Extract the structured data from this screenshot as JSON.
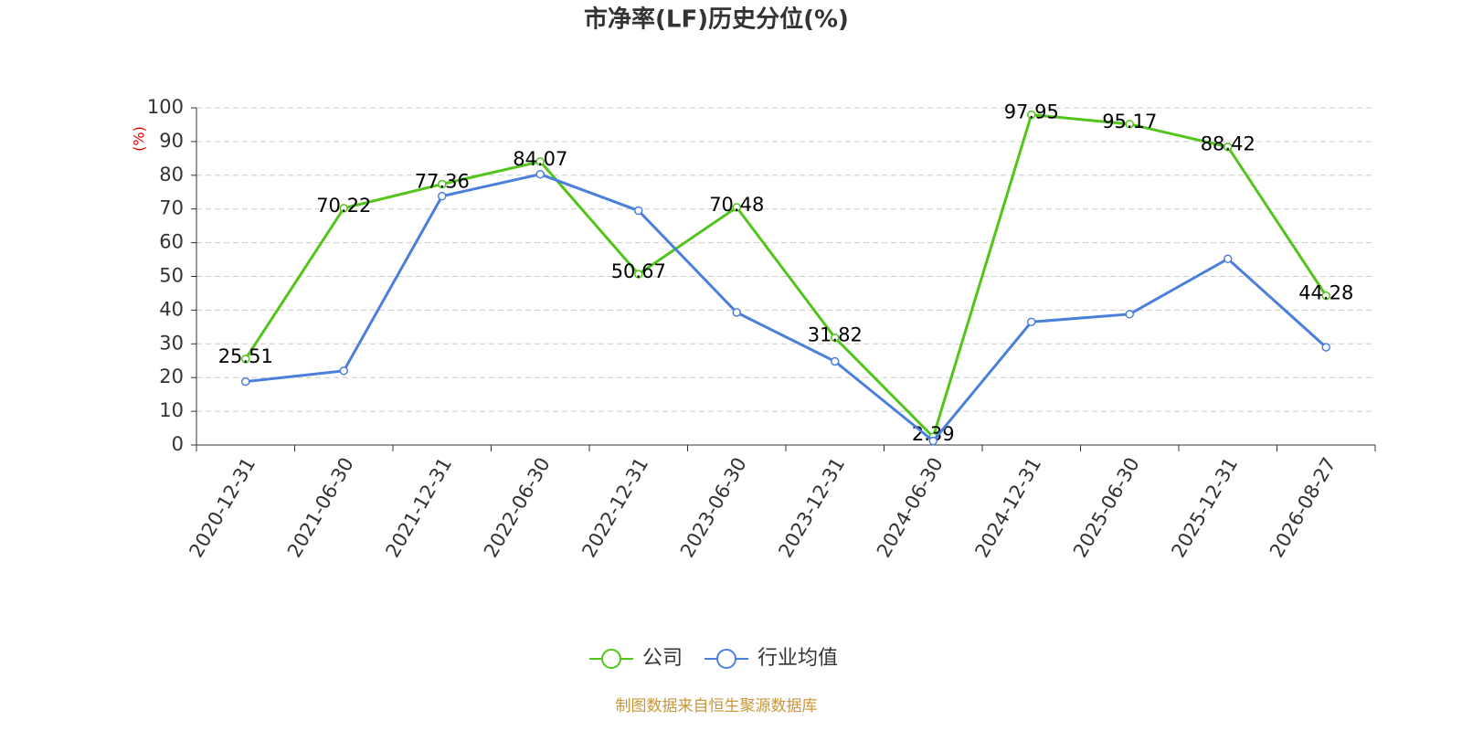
{
  "chart_data": {
    "type": "line",
    "title": "市净率(LF)历史分位(%)",
    "y_label": "(%)",
    "categories": [
      "2020-12-31",
      "2021-06-30",
      "2021-12-31",
      "2022-06-30",
      "2022-12-31",
      "2023-06-30",
      "2023-12-31",
      "2024-06-30",
      "2024-12-31",
      "2025-06-30",
      "2025-12-31",
      "2026-08-27"
    ],
    "series": [
      {
        "name": "公司",
        "color": "#52c41a",
        "values": [
          25.51,
          70.22,
          77.36,
          84.07,
          50.67,
          70.48,
          31.82,
          2.39,
          97.95,
          95.17,
          88.42,
          44.28
        ],
        "labels": true
      },
      {
        "name": "行业均值",
        "color": "#4a7fdc",
        "values": [
          18.8,
          22,
          73.8,
          80.3,
          69.5,
          39.3,
          24.8,
          1.2,
          36.5,
          38.8,
          55.2,
          29
        ],
        "labels": false
      }
    ],
    "ylim": [
      0,
      100
    ],
    "yticks": [
      0,
      10,
      20,
      30,
      40,
      50,
      60,
      70,
      80,
      90,
      100
    ],
    "grid": true,
    "legend": "bottom",
    "footer": "制图数据来自恒生聚源数据库"
  }
}
